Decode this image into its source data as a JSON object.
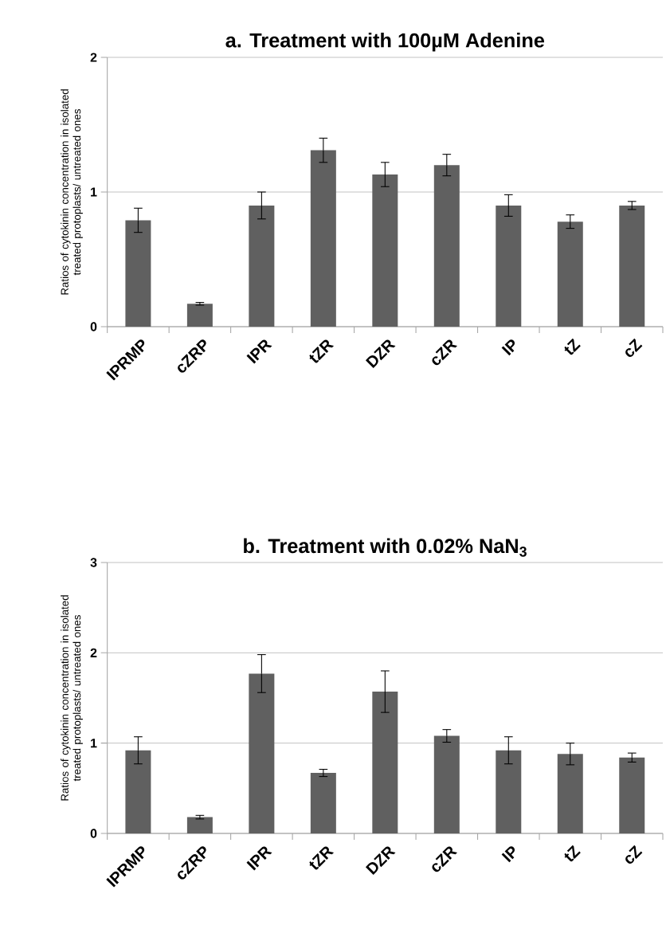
{
  "chart_data": [
    {
      "type": "bar",
      "title": "a. Treatment with 100µM Adenine",
      "ylabel": "Ratios of cytokinin concentration in isolated treated protoplasts/ untreated ones",
      "categories": [
        "IPRMP",
        "cZRP",
        "IPR",
        "tZR",
        "DZR",
        "cZR",
        "IP",
        "tZ",
        "cZ"
      ],
      "color": "#606060",
      "values": [
        0.79,
        0.17,
        0.9,
        1.31,
        1.13,
        1.2,
        0.9,
        0.78,
        0.9
      ],
      "errors": [
        0.09,
        0.01,
        0.1,
        0.09,
        0.09,
        0.08,
        0.08,
        0.05,
        0.03
      ],
      "ylim": [
        0,
        2
      ],
      "yticks": [
        0,
        1,
        2
      ],
      "grid": "y"
    },
    {
      "type": "bar",
      "title": "b. Treatment with 0.02% NaN$_{3}$",
      "ylabel": "Ratios of cytokinin concentration in isolated treated protoplasts/ untreated ones",
      "categories": [
        "IPRMP",
        "cZRP",
        "IPR",
        "tZR",
        "DZR",
        "cZR",
        "IP",
        "tZ",
        "cZ"
      ],
      "color": "#606060",
      "values": [
        0.92,
        0.18,
        1.77,
        0.67,
        1.57,
        1.08,
        0.92,
        0.88,
        0.84
      ],
      "errors": [
        0.15,
        0.02,
        0.21,
        0.04,
        0.23,
        0.07,
        0.15,
        0.12,
        0.05
      ],
      "ylim": [
        0,
        3
      ],
      "yticks": [
        0,
        1,
        2,
        3
      ],
      "grid": "y"
    }
  ]
}
